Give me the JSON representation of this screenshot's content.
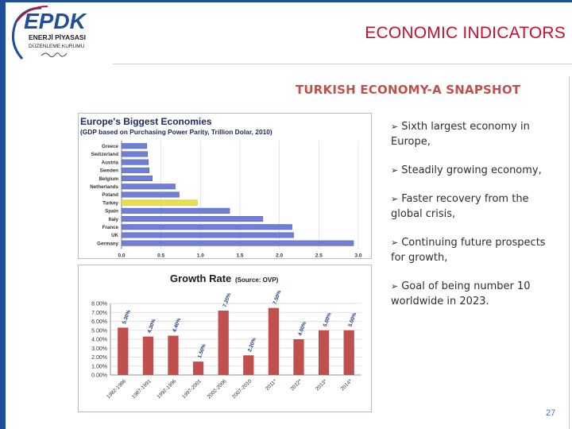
{
  "slide": {
    "title": "ECONOMIC INDICATORS",
    "subtitle": "TURKISH ECONOMY-A SNAPSHOT",
    "page_number": "27"
  },
  "logo": {
    "text": "EPDK",
    "line1": "ENERJİ PİYASASI",
    "line2": "DÜZENLEME KURUMU"
  },
  "bullets": [
    "Sixth largest economy in Europe,",
    "Steadily growing economy,",
    "Faster recovery from the global crisis,",
    "Continuing future prospects for growth,",
    "Goal of being number 10 worldwide in 2023."
  ],
  "colors": {
    "accent_blue": "#1f4e9a",
    "title_red": "#c8102e",
    "bar_blue": "#6f7fd6",
    "bar_highlight": "#e8e24a",
    "growth_bar": "#c0504d"
  },
  "chart_data": [
    {
      "type": "bar",
      "orientation": "horizontal",
      "title": "Europe's Biggest Economies",
      "subtitle": "(GDP based on Purchasing Power Parity, Trillion Dolar, 2010)",
      "categories": [
        "Greece",
        "Switzerland",
        "Austria",
        "Sweden",
        "Belgium",
        "Netherlands",
        "Poland",
        "Turkey",
        "Spain",
        "Italy",
        "France",
        "UK",
        "Germany"
      ],
      "values": [
        0.32,
        0.33,
        0.34,
        0.35,
        0.39,
        0.68,
        0.73,
        0.96,
        1.37,
        1.79,
        2.16,
        2.18,
        2.94
      ],
      "highlight": "Turkey",
      "xlim": [
        0,
        3.0
      ],
      "xticks": [
        "0.0",
        "0.5",
        "1.0",
        "1.5",
        "2.0",
        "2.5",
        "3.0"
      ],
      "grid": true
    },
    {
      "type": "bar",
      "title": "Growth Rate",
      "source_note": "(Source: OVP)",
      "categories": [
        "1982-1986",
        "1987-1991",
        "1992-1996",
        "1997-2001",
        "2002-2006",
        "2007-2010",
        "2011*",
        "2012*",
        "2013*",
        "2014*"
      ],
      "values": [
        5.3,
        4.3,
        4.4,
        1.5,
        7.2,
        2.2,
        7.5,
        4.0,
        5.0,
        5.0
      ],
      "labels": [
        "5.30%",
        "4.30%",
        "4.40%",
        "1.50%",
        "7.20%",
        "2.20%",
        "7.50%",
        "4.00%",
        "5.00%",
        "5.00%"
      ],
      "ylim": [
        0,
        8
      ],
      "yticks": [
        "0.00%",
        "1.00%",
        "2.00%",
        "3.00%",
        "4.00%",
        "5.00%",
        "6.00%",
        "7.00%",
        "8.00%"
      ],
      "grid": true
    }
  ]
}
